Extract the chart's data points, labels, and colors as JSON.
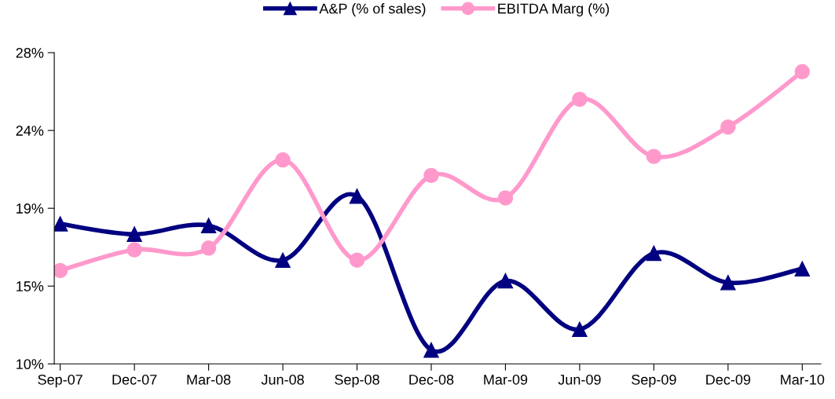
{
  "chart_data": {
    "type": "line",
    "categories": [
      "Sep-07",
      "Dec-07",
      "Mar-08",
      "Jun-08",
      "Sep-08",
      "Dec-08",
      "Mar-09",
      "Jun-09",
      "Sep-09",
      "Dec-09",
      "Mar-10"
    ],
    "series": [
      {
        "name": "A&P (% of sales)",
        "color": "#000080",
        "marker": "triangle",
        "values": [
          18.1,
          17.5,
          18.0,
          16.0,
          19.7,
          10.8,
          14.8,
          12.0,
          16.4,
          14.7,
          15.5
        ]
      },
      {
        "name": "EBITDA Marg (%)",
        "color": "#ff99cc",
        "marker": "circle",
        "values": [
          15.4,
          16.6,
          16.7,
          21.8,
          16.0,
          20.9,
          19.6,
          25.3,
          22.0,
          23.7,
          26.9
        ]
      }
    ],
    "ylim": [
      10,
      28
    ],
    "yticks": [
      {
        "value": 10,
        "label": "10%"
      },
      {
        "value": 14.5,
        "label": "15%"
      },
      {
        "value": 19,
        "label": "19%"
      },
      {
        "value": 23.5,
        "label": "24%"
      },
      {
        "value": 28,
        "label": "28%"
      }
    ],
    "grid": false,
    "legend": "top",
    "line_style": "solid"
  }
}
